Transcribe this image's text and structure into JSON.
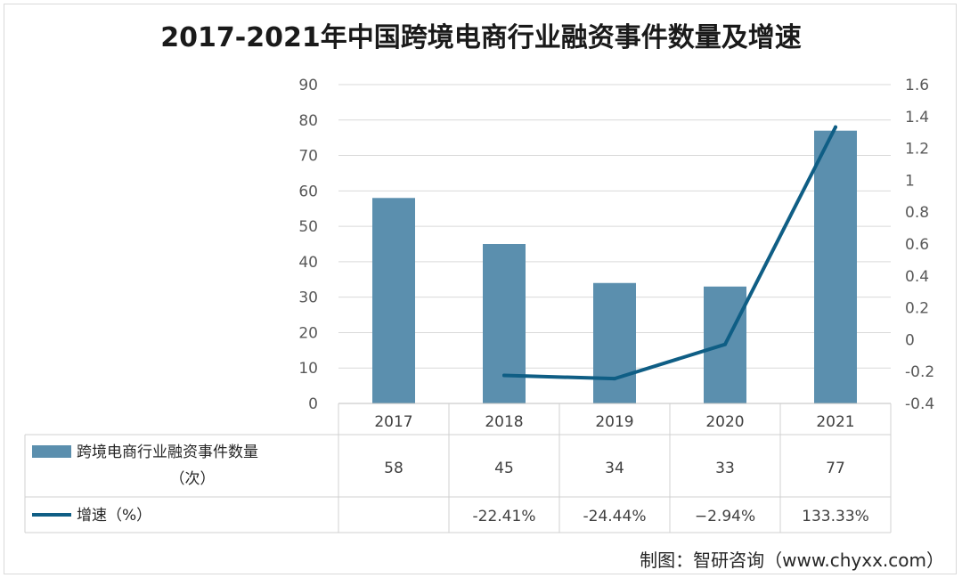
{
  "chart_data": {
    "type": "bar",
    "title": "2017-2021年中国跨境电商行业融资事件数量及增速",
    "categories": [
      "2017",
      "2018",
      "2019",
      "2020",
      "2021"
    ],
    "series": [
      {
        "name": "跨境电商行业融资事件数量",
        "name_suffix": "（次）",
        "type": "bar",
        "axis": "left",
        "values": [
          58,
          45,
          34,
          33,
          77
        ],
        "labels": [
          "58",
          "45",
          "34",
          "33",
          "77"
        ]
      },
      {
        "name": "增速（%）",
        "type": "line",
        "axis": "right",
        "values": [
          null,
          -0.2241,
          -0.2444,
          -0.0294,
          1.3333
        ],
        "labels": [
          "",
          "-22.41%",
          "-24.44%",
          "−2.94%",
          "133.33%"
        ]
      }
    ],
    "y_left": {
      "ticks": [
        "0",
        "10",
        "20",
        "30",
        "40",
        "50",
        "60",
        "70",
        "80",
        "90"
      ],
      "ylim": [
        0,
        90
      ]
    },
    "y_right": {
      "ticks": [
        "-0.4",
        "-0.2",
        "0",
        "0.2",
        "0.4",
        "0.6",
        "0.8",
        "1",
        "1.2",
        "1.4",
        "1.6"
      ],
      "ylim": [
        -0.4,
        1.6
      ]
    },
    "grid": true,
    "legend": "data-table",
    "colors": {
      "bar": "#5b8fae",
      "line": "#0f5e85",
      "grid": "#d9d9d9"
    }
  },
  "credit": "制图：智研咨询（www.chyxx.com）"
}
